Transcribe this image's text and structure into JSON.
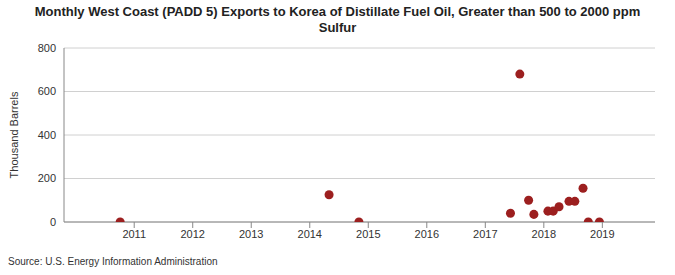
{
  "chart_data": {
    "type": "scatter",
    "title": "Monthly West Coast (PADD 5) Exports to Korea of Distillate Fuel Oil, Greater than 500 to 2000 ppm Sulfur",
    "y_label": "Thousand Barrels",
    "source": "Source: U.S. Energy Information Administration",
    "x": [
      2010.76,
      2014.33,
      2014.84,
      2017.43,
      2017.59,
      2017.74,
      2017.83,
      2018.07,
      2018.16,
      2018.26,
      2018.43,
      2018.53,
      2018.67,
      2018.76,
      2018.95
    ],
    "values": [
      0,
      125,
      0,
      40,
      680,
      100,
      35,
      50,
      50,
      70,
      95,
      95,
      155,
      0,
      0
    ],
    "color": "#9c1f1f",
    "marker": "circle",
    "xlim": [
      2009.8,
      2019.9
    ],
    "xticks": [
      2011,
      2012,
      2013,
      2014,
      2015,
      2016,
      2017,
      2018,
      2019
    ],
    "ylim": [
      0,
      800
    ],
    "yticks": [
      0,
      200,
      400,
      600,
      800
    ],
    "grid": true
  }
}
